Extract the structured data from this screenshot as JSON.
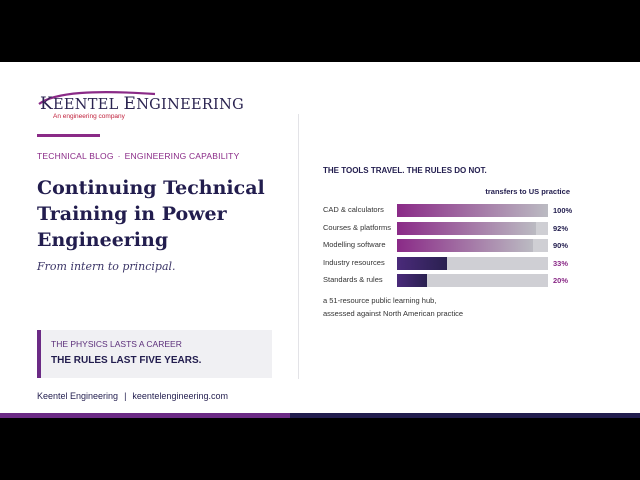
{
  "brand": {
    "name_first": "K",
    "name_rest1": "EENTEL ",
    "name_second": "E",
    "name_rest2": "NGINEERING",
    "tagline": "An engineering company",
    "colors": {
      "purple": "#8a2a87",
      "navy": "#221d4e",
      "bar_gradient_start": "#8a2a87",
      "bar_gradient_end": "#bbbbc2"
    }
  },
  "category": {
    "first": "TECHNICAL BLOG",
    "separator": "·",
    "second": "ENGINEERING CAPABILITY"
  },
  "title": "Continuing Technical Training in Power Engineering",
  "subtitle": "From intern to principal.",
  "callout": {
    "line1": "THE PHYSICS LASTS A CAREER",
    "line2": "THE RULES LAST FIVE YEARS."
  },
  "footer": {
    "company": "Keentel Engineering",
    "separator": "|",
    "website": "keentelengineering.com"
  },
  "panel": {
    "heading": "THE TOOLS TRAVEL. THE RULES DO NOT.",
    "note_line1": "a 51-resource public learning hub,",
    "note_line2": "assessed against North American practice"
  },
  "chart_data": {
    "type": "bar",
    "orientation": "horizontal",
    "title": "THE TOOLS TRAVEL. THE RULES DO NOT.",
    "value_header": "transfers to US practice",
    "categories": [
      "CAD & calculators",
      "Courses & platforms",
      "Modelling software",
      "Industry resources",
      "Standards & rules"
    ],
    "values": [
      100,
      92,
      90,
      33,
      20
    ],
    "value_labels": [
      "100%",
      "92%",
      "90%",
      "33%",
      "20%"
    ],
    "xlim": [
      0,
      100
    ],
    "label_colors": [
      "#221d4e",
      "#221d4e",
      "#221d4e",
      "#8a2a87",
      "#8a2a87"
    ],
    "fill_styles": [
      "gradient",
      "gradient",
      "gradient",
      "solid-dark",
      "solid-dark"
    ]
  }
}
